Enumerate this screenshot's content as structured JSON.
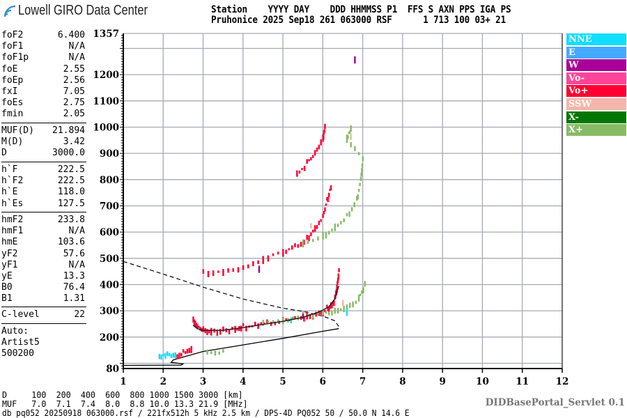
{
  "header": {
    "logo_text": "Lowell GIRO Data Center",
    "line1": "Station    YYYY DAY    DDD HHMMSS P1  FFS S AXN PPS IGA PS",
    "line2": "Pruhonice 2025 Sep18 261 063000 RSF      1 713 100 03+ 21"
  },
  "params": {
    "group1": [
      {
        "k": "foF2",
        "v": "6.400"
      },
      {
        "k": "foF1",
        "v": "N/A"
      },
      {
        "k": "foF1p",
        "v": "N/A"
      },
      {
        "k": "foE",
        "v": "2.55"
      },
      {
        "k": "foEp",
        "v": "2.56"
      },
      {
        "k": "fxI",
        "v": "7.05"
      },
      {
        "k": "foEs",
        "v": "2.75"
      },
      {
        "k": "fmin",
        "v": "2.05"
      }
    ],
    "group2": [
      {
        "k": "MUF(D)",
        "v": "21.894"
      },
      {
        "k": "M(D)",
        "v": "3.42"
      },
      {
        "k": "D",
        "v": "3000.0"
      }
    ],
    "group3": [
      {
        "k": "h`F",
        "v": "222.5"
      },
      {
        "k": "h`F2",
        "v": "222.5"
      },
      {
        "k": "h`E",
        "v": "118.0"
      },
      {
        "k": "h`Es",
        "v": "127.5"
      }
    ],
    "group4": [
      {
        "k": "hmF2",
        "v": "233.8"
      },
      {
        "k": "hmF1",
        "v": "N/A"
      },
      {
        "k": "hmE",
        "v": "103.6"
      },
      {
        "k": "yF2",
        "v": "57.6"
      },
      {
        "k": "yF1",
        "v": "N/A"
      },
      {
        "k": "yE",
        "v": "13.3"
      },
      {
        "k": "B0",
        "v": "76.4"
      },
      {
        "k": "B1",
        "v": "1.31"
      }
    ],
    "group5": [
      {
        "k": "C-level",
        "v": "22"
      }
    ],
    "auto": [
      "Auto:",
      "Artist5",
      "500200"
    ]
  },
  "legend": [
    {
      "label": "NNE",
      "color": "#11ddff"
    },
    {
      "label": "E",
      "color": "#44aaff"
    },
    {
      "label": "W",
      "color": "#aa0099"
    },
    {
      "label": "Vo-",
      "color": "#ff4499"
    },
    {
      "label": "Vo+",
      "color": "#ff0033"
    },
    {
      "label": "SSW",
      "color": "#f5b5aa"
    },
    {
      "label": "X-",
      "color": "#007700"
    },
    {
      "label": "X+",
      "color": "#88bb66"
    }
  ],
  "bottom": {
    "d_line": "D     100  200  400  600  800 1000 1500 3000 [km]",
    "muf_line": "MUF   7.0  7.1  7.4  8.0  8.8 10.0 13.3 21.9 [MHz]",
    "footer": "db pq052 20250918 063000.rsf / 221fx512h 5 kHz 2.5 km / DPS-4D PQ052 50 / 50.0 N 14.6 E",
    "servlet": "DIDBasePortal_Servlet 0.1"
  },
  "chart_data": {
    "type": "scatter",
    "xlim": [
      1,
      12
    ],
    "ylim": [
      80,
      1357
    ],
    "x_ticks": [
      "1",
      "2",
      "3",
      "4",
      "5",
      "6",
      "7",
      "8",
      "9",
      "10",
      "11",
      "12"
    ],
    "y_ticks": [
      "1357",
      "1200",
      "1100",
      "1000",
      "900",
      "800",
      "700",
      "600",
      "500",
      "400",
      "300",
      "200",
      "80"
    ],
    "grid": true,
    "legend_position": "right",
    "series": [
      {
        "name": "Vo+",
        "color": "#ff0033",
        "points": [
          [
            2.75,
            265
          ],
          [
            2.85,
            240
          ],
          [
            3,
            228
          ],
          [
            3.2,
            226
          ],
          [
            3.5,
            226
          ],
          [
            3.8,
            232
          ],
          [
            4,
            238
          ],
          [
            4.3,
            245
          ],
          [
            4.6,
            252
          ],
          [
            5,
            262
          ],
          [
            5.3,
            270
          ],
          [
            5.6,
            280
          ],
          [
            5.9,
            292
          ],
          [
            6.1,
            305
          ],
          [
            6.2,
            320
          ],
          [
            6.3,
            345
          ],
          [
            6.35,
            390
          ],
          [
            6.4,
            450
          ],
          [
            3,
            445
          ],
          [
            3.5,
            450
          ],
          [
            4,
            462
          ],
          [
            4.5,
            500
          ],
          [
            5,
            525
          ],
          [
            5.3,
            545
          ],
          [
            5.6,
            575
          ],
          [
            5.8,
            610
          ],
          [
            6,
            660
          ],
          [
            6.1,
            720
          ],
          [
            6.2,
            770
          ],
          [
            5.35,
            820
          ],
          [
            5.6,
            860
          ],
          [
            5.8,
            900
          ],
          [
            6,
            960
          ],
          [
            6.05,
            1000
          ],
          [
            2.3,
            130
          ],
          [
            2.5,
            138
          ],
          [
            2.7,
            155
          ]
        ]
      },
      {
        "name": "X+",
        "color": "#88bb66",
        "points": [
          [
            4.5,
            255
          ],
          [
            5,
            265
          ],
          [
            5.5,
            280
          ],
          [
            6,
            290
          ],
          [
            6.3,
            298
          ],
          [
            6.6,
            315
          ],
          [
            6.9,
            345
          ],
          [
            7.05,
            400
          ],
          [
            3.1,
            138
          ],
          [
            3.5,
            145
          ],
          [
            5.5,
            560
          ],
          [
            6,
            585
          ],
          [
            6.3,
            620
          ],
          [
            6.6,
            660
          ],
          [
            6.85,
            720
          ],
          [
            6.95,
            800
          ],
          [
            7,
            880
          ],
          [
            6.6,
            960
          ],
          [
            6.7,
            990
          ]
        ]
      },
      {
        "name": "NNE",
        "color": "#11ddff",
        "points": [
          [
            1.9,
            128
          ],
          [
            2.1,
            130
          ],
          [
            2.3,
            132
          ],
          [
            5.2,
            262
          ],
          [
            6.6,
            300
          ]
        ]
      },
      {
        "name": "W",
        "color": "#aa0099",
        "points": [
          [
            5.5,
            272
          ],
          [
            4.4,
            460
          ],
          [
            6.8,
            1260
          ]
        ]
      },
      {
        "name": "SSW",
        "color": "#f5b5aa",
        "points": [
          [
            6.7,
            960
          ],
          [
            6.5,
            330
          ],
          [
            5.7,
            625
          ]
        ]
      }
    ],
    "profile_curves": {
      "solid_virtual": [
        [
          2.75,
          245
        ],
        [
          2.85,
          232
        ],
        [
          3,
          225
        ],
        [
          3.5,
          226
        ],
        [
          4,
          236
        ],
        [
          4.5,
          248
        ],
        [
          5,
          260
        ],
        [
          5.5,
          275
        ],
        [
          5.9,
          295
        ],
        [
          6.15,
          315
        ],
        [
          6.3,
          345
        ],
        [
          6.4,
          395
        ]
      ],
      "solid_true": [
        [
          1,
          92
        ],
        [
          2.45,
          93
        ],
        [
          2.5,
          98
        ],
        [
          2.2,
          103
        ],
        [
          2.25,
          113
        ],
        [
          3,
          145
        ],
        [
          4,
          170
        ],
        [
          5,
          195
        ],
        [
          6,
          222
        ],
        [
          6.4,
          232
        ]
      ],
      "dashed": [
        [
          1,
          488
        ],
        [
          2,
          440
        ],
        [
          3,
          390
        ],
        [
          4,
          345
        ],
        [
          5,
          310
        ],
        [
          5.5,
          298
        ],
        [
          6,
          280
        ],
        [
          6.3,
          262
        ],
        [
          6.4,
          240
        ]
      ]
    }
  }
}
